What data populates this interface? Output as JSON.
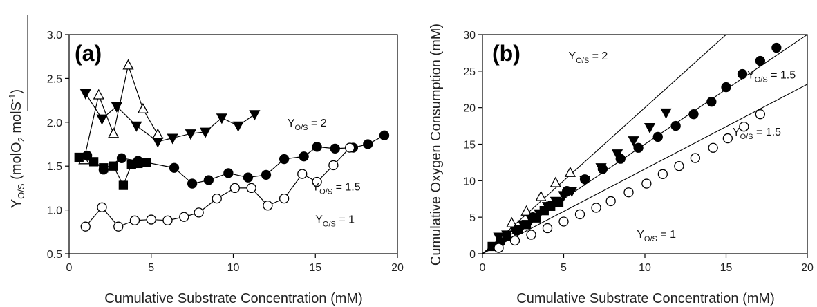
{
  "chart_data": [
    {
      "type": "scatter",
      "panel_label": "(a)",
      "xlabel": "Cumulative Substrate Concentration (mM)",
      "ylabel": {
        "main": "Y",
        "sub": "O/S",
        "rest": " (molO",
        "sub2": "2",
        "rest2": " molS",
        "sup": "-1",
        "end": ")"
      },
      "xlim": [
        0,
        20
      ],
      "ylim": [
        0.5,
        3.0
      ],
      "xticks": [
        0,
        5,
        10,
        15,
        20
      ],
      "yticks": [
        0.5,
        1.0,
        1.5,
        2.0,
        2.5,
        3.0
      ],
      "xtick_labels": [
        "0",
        "5",
        "10",
        "15",
        "20"
      ],
      "ytick_labels": [
        "0.5",
        "1.0",
        "1.5",
        "2.0",
        "2.5",
        "3.0"
      ],
      "grid": false,
      "series": [
        {
          "marker": "triangle-down-filled",
          "connected": true,
          "x": [
            1.0,
            2.0,
            2.9,
            4.1,
            5.4,
            6.3,
            7.4,
            8.3,
            9.3,
            10.3,
            11.3
          ],
          "y": [
            2.33,
            2.04,
            2.18,
            1.96,
            1.78,
            1.82,
            1.87,
            1.89,
            2.05,
            1.96,
            2.09
          ]
        },
        {
          "marker": "triangle-up-open",
          "connected": true,
          "x": [
            0.9,
            1.8,
            2.7,
            3.6,
            4.5,
            5.4
          ],
          "y": [
            1.57,
            2.31,
            1.87,
            2.65,
            2.15,
            1.86
          ]
        },
        {
          "marker": "circle-filled",
          "connected": true,
          "x": [
            1.1,
            2.1,
            3.2,
            4.2,
            6.4,
            7.5,
            8.5,
            9.7,
            10.9,
            12.0,
            13.1,
            14.3,
            15.1,
            16.2,
            17.3,
            18.2,
            19.2
          ],
          "y": [
            1.62,
            1.46,
            1.59,
            1.56,
            1.48,
            1.3,
            1.34,
            1.42,
            1.37,
            1.4,
            1.58,
            1.61,
            1.72,
            1.7,
            1.71,
            1.75,
            1.85
          ]
        },
        {
          "marker": "square-filled",
          "connected": true,
          "x": [
            0.6,
            1.5,
            2.1,
            2.7,
            3.3,
            3.8,
            4.2,
            4.7
          ],
          "y": [
            1.6,
            1.55,
            1.48,
            1.5,
            1.28,
            1.52,
            1.53,
            1.54
          ]
        },
        {
          "marker": "circle-open",
          "connected": true,
          "x": [
            1.0,
            2.0,
            3.0,
            4.0,
            5.0,
            6.0,
            7.0,
            7.9,
            9.0,
            10.1,
            11.1,
            12.1,
            13.1,
            14.2,
            15.1,
            16.1,
            17.1
          ],
          "y": [
            0.81,
            1.03,
            0.81,
            0.88,
            0.89,
            0.88,
            0.92,
            0.97,
            1.13,
            1.25,
            1.25,
            1.05,
            1.13,
            1.41,
            1.32,
            1.51,
            1.71
          ]
        }
      ],
      "annotations": [
        {
          "main": "Y",
          "sub": "O/S",
          "rest": " = 2",
          "x": 13.3,
          "y": 1.95
        },
        {
          "main": "Y",
          "sub": "O/S",
          "rest": " = 1.5",
          "x": 14.8,
          "y": 1.22
        },
        {
          "main": "Y",
          "sub": "O/S",
          "rest": " = 1",
          "x": 15.0,
          "y": 0.85
        }
      ]
    },
    {
      "type": "scatter",
      "panel_label": "(b)",
      "xlabel": "Cumulative Substrate Concentration (mM)",
      "ylabel": "Cumulative Oxygen Consumption (mM)",
      "xlim": [
        0,
        20
      ],
      "ylim": [
        0,
        30
      ],
      "xticks": [
        0,
        5,
        10,
        15,
        20
      ],
      "yticks": [
        0,
        5,
        10,
        15,
        20,
        25,
        30
      ],
      "xtick_labels": [
        "0",
        "5",
        "10",
        "15",
        "20"
      ],
      "ytick_labels": [
        "0",
        "5",
        "10",
        "15",
        "20",
        "25",
        "30"
      ],
      "grid": false,
      "fit_lines": [
        {
          "slope": 2.0,
          "x_end": 15.0
        },
        {
          "slope": 1.5,
          "x_end": 20.0
        },
        {
          "slope": 1.16,
          "x_end": 20.0
        }
      ],
      "series": [
        {
          "marker": "triangle-down-filled",
          "connected": false,
          "x": [
            1.0,
            1.5,
            2.0,
            2.5,
            3.0,
            3.5,
            4.0,
            4.5,
            5.0,
            5.5,
            6.3,
            7.3,
            8.3,
            9.3,
            10.3,
            11.3
          ],
          "y": [
            2.3,
            2.6,
            3.2,
            4.0,
            4.7,
            5.5,
            6.5,
            7.2,
            8.0,
            8.6,
            10.1,
            11.8,
            13.7,
            15.5,
            17.3,
            19.3
          ]
        },
        {
          "marker": "triangle-up-open",
          "connected": false,
          "x": [
            1.8,
            2.7,
            3.6,
            4.5,
            5.4
          ],
          "y": [
            4.2,
            5.8,
            7.8,
            9.7,
            11.1
          ]
        },
        {
          "marker": "circle-filled",
          "connected": false,
          "x": [
            1.1,
            2.1,
            3.1,
            4.2,
            5.2,
            6.3,
            7.4,
            8.5,
            9.6,
            10.8,
            11.9,
            13.0,
            14.1,
            15.0,
            16.0,
            17.1,
            18.1
          ],
          "y": [
            1.6,
            3.2,
            5.0,
            6.6,
            8.6,
            10.2,
            11.6,
            13.0,
            14.5,
            16.0,
            17.5,
            19.1,
            20.8,
            22.8,
            24.6,
            26.4,
            28.2
          ]
        },
        {
          "marker": "square-filled",
          "connected": false,
          "x": [
            0.6,
            1.5,
            2.2,
            2.7,
            3.3,
            3.8,
            4.2,
            4.7
          ],
          "y": [
            1.0,
            2.4,
            3.3,
            4.0,
            4.9,
            5.9,
            6.5,
            7.0
          ]
        },
        {
          "marker": "circle-open",
          "connected": false,
          "x": [
            1.0,
            2.0,
            3.0,
            4.0,
            5.0,
            6.0,
            7.0,
            7.9,
            9.0,
            10.1,
            11.1,
            12.1,
            13.1,
            14.2,
            15.1,
            16.1,
            17.1
          ],
          "y": [
            0.8,
            1.8,
            2.6,
            3.5,
            4.4,
            5.4,
            6.3,
            7.2,
            8.4,
            9.6,
            10.9,
            12.0,
            13.1,
            14.5,
            15.8,
            17.4,
            19.1
          ]
        }
      ],
      "annotations": [
        {
          "main": "Y",
          "sub": "O/S",
          "rest": " = 2",
          "x": 5.3,
          "y": 26.6
        },
        {
          "main": "Y",
          "sub": "O/S",
          "rest": " = 1.5",
          "x": 16.3,
          "y": 24.0
        },
        {
          "main": "Y",
          "sub": "O/S",
          "rest": " = 1.5",
          "x": 15.4,
          "y": 16.2
        },
        {
          "main": "Y",
          "sub": "O/S",
          "rest": " = 1",
          "x": 9.5,
          "y": 2.2
        }
      ]
    }
  ]
}
